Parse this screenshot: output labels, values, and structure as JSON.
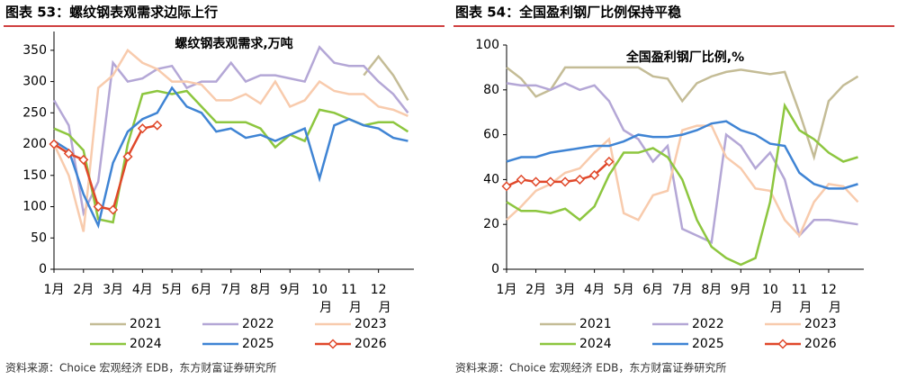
{
  "chart_data": [
    {
      "type": "line",
      "heading": "图表 53：螺纹钢表观需求边际上行",
      "title": "螺纹钢表观需求,万吨",
      "source": "资料来源：Choice 宏观经济 EDB，东方财富证券研究所",
      "x": [
        1,
        1.5,
        2,
        2.5,
        3,
        3.5,
        4,
        4.5,
        5,
        5.5,
        6,
        6.5,
        7,
        7.5,
        8,
        8.5,
        9,
        9.5,
        10,
        10.5,
        11,
        11.5,
        12,
        12.5,
        13
      ],
      "xlim": [
        1,
        13.2
      ],
      "xticks": [
        {
          "value": 1,
          "label": "1月"
        },
        {
          "value": 2,
          "label": "2月"
        },
        {
          "value": 3,
          "label": "3月"
        },
        {
          "value": 4,
          "label": "4月"
        },
        {
          "value": 5,
          "label": "5月"
        },
        {
          "value": 6,
          "label": "6月"
        },
        {
          "value": 7,
          "label": "7月"
        },
        {
          "value": 8,
          "label": "8月"
        },
        {
          "value": 9,
          "label": "9月"
        },
        {
          "value": 10,
          "label": "10月"
        },
        {
          "value": 11,
          "label": "11月"
        },
        {
          "value": 12,
          "label": "12月"
        }
      ],
      "ylim": [
        0,
        380
      ],
      "yticks": [
        0,
        50,
        100,
        150,
        200,
        250,
        300,
        350
      ],
      "series": [
        {
          "name": "2021",
          "color": "#c4bc96",
          "values": [
            null,
            null,
            null,
            null,
            null,
            null,
            null,
            null,
            null,
            null,
            null,
            null,
            null,
            null,
            null,
            null,
            null,
            null,
            null,
            null,
            null,
            310,
            340,
            310,
            270
          ]
        },
        {
          "name": "2022",
          "color": "#b4a7d6",
          "values": [
            270,
            230,
            90,
            140,
            330,
            300,
            305,
            320,
            325,
            290,
            300,
            300,
            330,
            300,
            310,
            310,
            305,
            300,
            355,
            330,
            325,
            325,
            300,
            280,
            250
          ]
        },
        {
          "name": "2023",
          "color": "#f8cbad",
          "values": [
            200,
            150,
            60,
            290,
            310,
            350,
            330,
            320,
            300,
            300,
            295,
            270,
            270,
            280,
            265,
            300,
            260,
            270,
            300,
            285,
            280,
            280,
            260,
            255,
            245
          ]
        },
        {
          "name": "2024",
          "color": "#8dc63f",
          "values": [
            225,
            215,
            190,
            80,
            75,
            200,
            280,
            285,
            280,
            285,
            260,
            235,
            235,
            235,
            225,
            195,
            215,
            205,
            255,
            250,
            240,
            230,
            235,
            235,
            220
          ]
        },
        {
          "name": "2025",
          "color": "#3f84d4",
          "values": [
            205,
            190,
            120,
            70,
            170,
            220,
            240,
            250,
            290,
            260,
            250,
            220,
            225,
            210,
            215,
            205,
            215,
            225,
            145,
            230,
            240,
            230,
            225,
            210,
            205
          ]
        },
        {
          "name": "2026",
          "color": "#e0482a",
          "marker": "diamond",
          "values": [
            200,
            185,
            175,
            100,
            95,
            180,
            225,
            230,
            null,
            null,
            null,
            null,
            null,
            null,
            null,
            null,
            null,
            null,
            null,
            null,
            null,
            null,
            null,
            null,
            null
          ]
        }
      ]
    },
    {
      "type": "line",
      "heading": "图表 54：全国盈利钢厂比例保持平稳",
      "title": "全国盈利钢厂比例,%",
      "source": "资料来源：Choice 宏观经济 EDB，东方财富证券研究所",
      "x": [
        1,
        1.5,
        2,
        2.5,
        3,
        3.5,
        4,
        4.5,
        5,
        5.5,
        6,
        6.5,
        7,
        7.5,
        8,
        8.5,
        9,
        9.5,
        10,
        10.5,
        11,
        11.5,
        12,
        12.5,
        13
      ],
      "xlim": [
        1,
        13.2
      ],
      "xticks": [
        {
          "value": 1,
          "label": "1月"
        },
        {
          "value": 2,
          "label": "2月"
        },
        {
          "value": 3,
          "label": "3月"
        },
        {
          "value": 4,
          "label": "4月"
        },
        {
          "value": 5,
          "label": "5月"
        },
        {
          "value": 6,
          "label": "6月"
        },
        {
          "value": 7,
          "label": "7月"
        },
        {
          "value": 8,
          "label": "8月"
        },
        {
          "value": 9,
          "label": "9月"
        },
        {
          "value": 10,
          "label": "10月"
        },
        {
          "value": 11,
          "label": "11月"
        },
        {
          "value": 12,
          "label": "12月"
        }
      ],
      "ylim": [
        0,
        100
      ],
      "yticks": [
        0,
        20,
        40,
        60,
        80,
        100
      ],
      "series": [
        {
          "name": "2021",
          "color": "#c4bc96",
          "values": [
            90,
            85,
            77,
            80,
            90,
            90,
            90,
            90,
            90,
            90,
            86,
            85,
            75,
            83,
            86,
            88,
            89,
            88,
            87,
            88,
            70,
            50,
            75,
            82,
            86
          ]
        },
        {
          "name": "2022",
          "color": "#b4a7d6",
          "values": [
            83,
            82,
            82,
            80,
            83,
            80,
            82,
            75,
            62,
            58,
            48,
            55,
            18,
            15,
            12,
            60,
            55,
            45,
            52,
            40,
            15,
            22,
            22,
            21,
            20
          ]
        },
        {
          "name": "2023",
          "color": "#f8cbad",
          "values": [
            22,
            28,
            35,
            38,
            43,
            45,
            52,
            58,
            25,
            22,
            33,
            35,
            62,
            64,
            64,
            50,
            45,
            36,
            35,
            22,
            15,
            30,
            38,
            37,
            30
          ]
        },
        {
          "name": "2024",
          "color": "#8dc63f",
          "values": [
            30,
            26,
            26,
            25,
            27,
            22,
            28,
            42,
            52,
            52,
            54,
            50,
            40,
            22,
            10,
            5,
            2,
            5,
            30,
            73,
            62,
            58,
            52,
            48,
            50
          ]
        },
        {
          "name": "2025",
          "color": "#3f84d4",
          "values": [
            48,
            50,
            50,
            52,
            53,
            54,
            55,
            55,
            57,
            60,
            59,
            59,
            60,
            62,
            65,
            66,
            62,
            60,
            56,
            55,
            43,
            38,
            36,
            36,
            38
          ]
        },
        {
          "name": "2026",
          "color": "#e0482a",
          "marker": "diamond",
          "values": [
            37,
            40,
            39,
            39,
            39,
            40,
            42,
            48,
            null,
            null,
            null,
            null,
            null,
            null,
            null,
            null,
            null,
            null,
            null,
            null,
            null,
            null,
            null,
            null,
            null
          ]
        }
      ]
    }
  ]
}
